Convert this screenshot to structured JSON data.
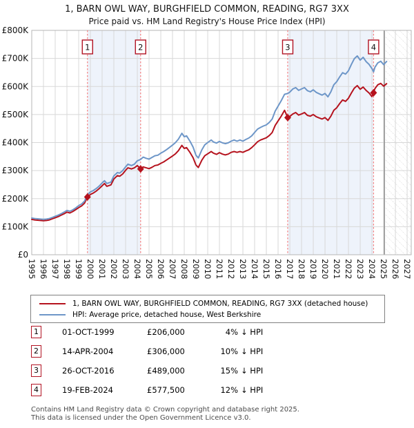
{
  "header": {
    "title": "1, BARN OWL WAY, BURGHFIELD COMMON, READING, RG7 3XX",
    "subtitle": "Price paid vs. HM Land Registry's House Price Index (HPI)"
  },
  "colors": {
    "property_line": "#b5121d",
    "hpi_line": "#6d96c8",
    "sale_dashed_line": "#f47f7f",
    "ownership_band": "#eef3fb",
    "grid": "#d8d8d8",
    "plot_border": "#b5b5b5",
    "now_line": "#8c8c8c",
    "hatch": "#c9c9c9",
    "marker_box_border": "#b11222"
  },
  "chart_data": {
    "type": "line",
    "title": "1, BARN OWL WAY, BURGHFIELD COMMON, READING, RG7 3XX",
    "subtitle": "Price paid vs. HM Land Registry's House Price Index (HPI)",
    "ylabel": "",
    "xlabel": "",
    "ylim_gbp_k": [
      0,
      800
    ],
    "xlim_years": [
      1995,
      2027.35
    ],
    "y_ticks_gbp_k": [
      0,
      100,
      200,
      300,
      400,
      500,
      600,
      700,
      800
    ],
    "y_tick_labels": [
      "£0",
      "£100K",
      "£200K",
      "£300K",
      "£400K",
      "£500K",
      "£600K",
      "£700K",
      "£800K"
    ],
    "x_ticks_years": [
      1995,
      1996,
      1997,
      1998,
      1999,
      2000,
      2001,
      2002,
      2003,
      2004,
      2005,
      2006,
      2007,
      2008,
      2009,
      2010,
      2011,
      2012,
      2013,
      2014,
      2015,
      2016,
      2017,
      2018,
      2019,
      2020,
      2021,
      2022,
      2023,
      2024,
      2025,
      2026,
      2027
    ],
    "grid": true,
    "legend_position": "below",
    "ownership_bands_years": [
      [
        1999.75,
        2004.28
      ],
      [
        2016.82,
        2024.14
      ]
    ],
    "future_hatch_from_year": 2025.06,
    "sale_markers": [
      {
        "label": "1",
        "year": 1999.75,
        "value_gbp_k": 206
      },
      {
        "label": "2",
        "year": 2004.28,
        "value_gbp_k": 306
      },
      {
        "label": "3",
        "year": 2016.82,
        "value_gbp_k": 489
      },
      {
        "label": "4",
        "year": 2024.14,
        "value_gbp_k": 577.5
      }
    ],
    "series": [
      {
        "name": "1, BARN OWL WAY, BURGHFIELD COMMON, READING, RG7 3XX (detached house)",
        "color_key": "property_line",
        "points_year_gbp_k": [
          [
            1995,
            126
          ],
          [
            1995.25,
            124
          ],
          [
            1995.5,
            123
          ],
          [
            1995.75,
            122
          ],
          [
            1996,
            121
          ],
          [
            1996.25,
            122
          ],
          [
            1996.5,
            124
          ],
          [
            1996.75,
            128
          ],
          [
            1997,
            132
          ],
          [
            1997.25,
            136
          ],
          [
            1997.5,
            141
          ],
          [
            1997.75,
            146
          ],
          [
            1998,
            152
          ],
          [
            1998.25,
            149
          ],
          [
            1998.5,
            154
          ],
          [
            1998.75,
            161
          ],
          [
            1999,
            168
          ],
          [
            1999.25,
            174
          ],
          [
            1999.5,
            184
          ],
          [
            1999.75,
            206
          ],
          [
            2000,
            215
          ],
          [
            2000.25,
            220
          ],
          [
            2000.5,
            227
          ],
          [
            2000.75,
            236
          ],
          [
            2001,
            246
          ],
          [
            2001.2,
            254
          ],
          [
            2001.4,
            244
          ],
          [
            2001.75,
            249
          ],
          [
            2002,
            270
          ],
          [
            2002.3,
            282
          ],
          [
            2002.5,
            280
          ],
          [
            2002.75,
            288
          ],
          [
            2003,
            301
          ],
          [
            2003.2,
            310
          ],
          [
            2003.5,
            306
          ],
          [
            2003.75,
            310
          ],
          [
            2004,
            318
          ],
          [
            2004.28,
            306
          ],
          [
            2004.5,
            313
          ],
          [
            2004.75,
            310
          ],
          [
            2005,
            307
          ],
          [
            2005.25,
            312
          ],
          [
            2005.5,
            318
          ],
          [
            2005.75,
            320
          ],
          [
            2006,
            326
          ],
          [
            2006.25,
            331
          ],
          [
            2006.5,
            338
          ],
          [
            2006.75,
            345
          ],
          [
            2007,
            352
          ],
          [
            2007.25,
            360
          ],
          [
            2007.5,
            371
          ],
          [
            2007.8,
            390
          ],
          [
            2008,
            379
          ],
          [
            2008.2,
            382
          ],
          [
            2008.5,
            364
          ],
          [
            2008.75,
            346
          ],
          [
            2009,
            320
          ],
          [
            2009.2,
            311
          ],
          [
            2009.5,
            337
          ],
          [
            2009.75,
            353
          ],
          [
            2010,
            360
          ],
          [
            2010.3,
            368
          ],
          [
            2010.5,
            362
          ],
          [
            2010.75,
            358
          ],
          [
            2011,
            364
          ],
          [
            2011.25,
            359
          ],
          [
            2011.5,
            356
          ],
          [
            2011.75,
            359
          ],
          [
            2012,
            365
          ],
          [
            2012.25,
            368
          ],
          [
            2012.5,
            365
          ],
          [
            2012.75,
            368
          ],
          [
            2013,
            365
          ],
          [
            2013.25,
            370
          ],
          [
            2013.5,
            374
          ],
          [
            2013.75,
            382
          ],
          [
            2014,
            392
          ],
          [
            2014.25,
            403
          ],
          [
            2014.5,
            409
          ],
          [
            2014.75,
            413
          ],
          [
            2015,
            417
          ],
          [
            2015.25,
            425
          ],
          [
            2015.5,
            436
          ],
          [
            2015.75,
            461
          ],
          [
            2016,
            477
          ],
          [
            2016.25,
            493
          ],
          [
            2016.55,
            515
          ],
          [
            2016.82,
            489
          ],
          [
            2017,
            493
          ],
          [
            2017.25,
            502
          ],
          [
            2017.5,
            507
          ],
          [
            2017.75,
            498
          ],
          [
            2018,
            502
          ],
          [
            2018.25,
            507
          ],
          [
            2018.5,
            497
          ],
          [
            2018.75,
            494
          ],
          [
            2019,
            500
          ],
          [
            2019.25,
            492
          ],
          [
            2019.5,
            488
          ],
          [
            2019.75,
            484
          ],
          [
            2020,
            489
          ],
          [
            2020.25,
            479
          ],
          [
            2020.5,
            494
          ],
          [
            2020.75,
            515
          ],
          [
            2021,
            524
          ],
          [
            2021.25,
            539
          ],
          [
            2021.5,
            552
          ],
          [
            2021.75,
            547
          ],
          [
            2022,
            558
          ],
          [
            2022.25,
            577
          ],
          [
            2022.5,
            594
          ],
          [
            2022.75,
            603
          ],
          [
            2023,
            590
          ],
          [
            2023.25,
            598
          ],
          [
            2023.5,
            586
          ],
          [
            2023.75,
            577
          ],
          [
            2024,
            564
          ],
          [
            2024.14,
            577.5
          ],
          [
            2024.25,
            592
          ],
          [
            2024.5,
            606
          ],
          [
            2024.75,
            611
          ],
          [
            2025,
            601
          ],
          [
            2025.25,
            610
          ]
        ]
      },
      {
        "name": "HPI: Average price, detached house, West Berkshire",
        "color_key": "hpi_line",
        "points_year_gbp_k": [
          [
            1995,
            131
          ],
          [
            1995.25,
            129
          ],
          [
            1995.5,
            128
          ],
          [
            1995.75,
            127
          ],
          [
            1996,
            126
          ],
          [
            1996.25,
            127
          ],
          [
            1996.5,
            129
          ],
          [
            1996.75,
            133
          ],
          [
            1997,
            137
          ],
          [
            1997.25,
            141
          ],
          [
            1997.5,
            146
          ],
          [
            1997.75,
            152
          ],
          [
            1998,
            158
          ],
          [
            1998.25,
            155
          ],
          [
            1998.5,
            160
          ],
          [
            1998.75,
            167
          ],
          [
            1999,
            175
          ],
          [
            1999.25,
            181
          ],
          [
            1999.5,
            191
          ],
          [
            1999.75,
            214
          ],
          [
            2000,
            224
          ],
          [
            2000.25,
            229
          ],
          [
            2000.5,
            236
          ],
          [
            2000.75,
            245
          ],
          [
            2001,
            256
          ],
          [
            2001.2,
            264
          ],
          [
            2001.4,
            254
          ],
          [
            2001.75,
            259
          ],
          [
            2002,
            281
          ],
          [
            2002.3,
            293
          ],
          [
            2002.5,
            291
          ],
          [
            2002.75,
            300
          ],
          [
            2003,
            313
          ],
          [
            2003.2,
            323
          ],
          [
            2003.5,
            318
          ],
          [
            2003.75,
            323
          ],
          [
            2004,
            335
          ],
          [
            2004.28,
            340
          ],
          [
            2004.5,
            348
          ],
          [
            2004.75,
            344
          ],
          [
            2005,
            341
          ],
          [
            2005.25,
            347
          ],
          [
            2005.5,
            353
          ],
          [
            2005.75,
            355
          ],
          [
            2006,
            362
          ],
          [
            2006.25,
            368
          ],
          [
            2006.5,
            375
          ],
          [
            2006.75,
            383
          ],
          [
            2007,
            391
          ],
          [
            2007.25,
            400
          ],
          [
            2007.5,
            412
          ],
          [
            2007.8,
            433
          ],
          [
            2008,
            421
          ],
          [
            2008.2,
            424
          ],
          [
            2008.5,
            404
          ],
          [
            2008.75,
            384
          ],
          [
            2009,
            355
          ],
          [
            2009.2,
            345
          ],
          [
            2009.5,
            374
          ],
          [
            2009.75,
            392
          ],
          [
            2010,
            400
          ],
          [
            2010.3,
            409
          ],
          [
            2010.5,
            402
          ],
          [
            2010.75,
            398
          ],
          [
            2011,
            404
          ],
          [
            2011.25,
            399
          ],
          [
            2011.5,
            396
          ],
          [
            2011.75,
            399
          ],
          [
            2012,
            405
          ],
          [
            2012.25,
            409
          ],
          [
            2012.5,
            405
          ],
          [
            2012.75,
            409
          ],
          [
            2013,
            405
          ],
          [
            2013.25,
            411
          ],
          [
            2013.5,
            416
          ],
          [
            2013.75,
            424
          ],
          [
            2014,
            436
          ],
          [
            2014.25,
            448
          ],
          [
            2014.5,
            454
          ],
          [
            2014.75,
            459
          ],
          [
            2015,
            463
          ],
          [
            2015.25,
            472
          ],
          [
            2015.5,
            484
          ],
          [
            2015.75,
            512
          ],
          [
            2016,
            530
          ],
          [
            2016.25,
            548
          ],
          [
            2016.55,
            572
          ],
          [
            2016.82,
            575
          ],
          [
            2017,
            580
          ],
          [
            2017.25,
            591
          ],
          [
            2017.5,
            596
          ],
          [
            2017.75,
            586
          ],
          [
            2018,
            591
          ],
          [
            2018.25,
            596
          ],
          [
            2018.5,
            585
          ],
          [
            2018.75,
            581
          ],
          [
            2019,
            588
          ],
          [
            2019.25,
            579
          ],
          [
            2019.5,
            574
          ],
          [
            2019.75,
            569
          ],
          [
            2020,
            575
          ],
          [
            2020.25,
            563
          ],
          [
            2020.5,
            581
          ],
          [
            2020.75,
            606
          ],
          [
            2021,
            617
          ],
          [
            2021.25,
            634
          ],
          [
            2021.5,
            649
          ],
          [
            2021.75,
            644
          ],
          [
            2022,
            656
          ],
          [
            2022.25,
            679
          ],
          [
            2022.5,
            699
          ],
          [
            2022.75,
            709
          ],
          [
            2023,
            694
          ],
          [
            2023.25,
            704
          ],
          [
            2023.5,
            689
          ],
          [
            2023.75,
            679
          ],
          [
            2024,
            664
          ],
          [
            2024.14,
            652
          ],
          [
            2024.25,
            668
          ],
          [
            2024.5,
            684
          ],
          [
            2024.75,
            690
          ],
          [
            2025,
            678
          ],
          [
            2025.25,
            689
          ]
        ]
      }
    ]
  },
  "legend": {
    "items": [
      {
        "label": "1, BARN OWL WAY, BURGHFIELD COMMON, READING, RG7 3XX (detached house)",
        "color_key": "property_line"
      },
      {
        "label": "HPI: Average price, detached house, West Berkshire",
        "color_key": "hpi_line"
      }
    ]
  },
  "transactions": [
    {
      "num": "1",
      "date": "01-OCT-1999",
      "price": "£206,000",
      "pct": "4%",
      "suffix": "↓ HPI"
    },
    {
      "num": "2",
      "date": "14-APR-2004",
      "price": "£306,000",
      "pct": "10%",
      "suffix": "↓ HPI"
    },
    {
      "num": "3",
      "date": "26-OCT-2016",
      "price": "£489,000",
      "pct": "15%",
      "suffix": "↓ HPI"
    },
    {
      "num": "4",
      "date": "19-FEB-2024",
      "price": "£577,500",
      "pct": "12%",
      "suffix": "↓ HPI"
    }
  ],
  "footer": {
    "line1": "Contains HM Land Registry data © Crown copyright and database right 2025.",
    "line2": "This data is licensed under the Open Government Licence v3.0."
  }
}
